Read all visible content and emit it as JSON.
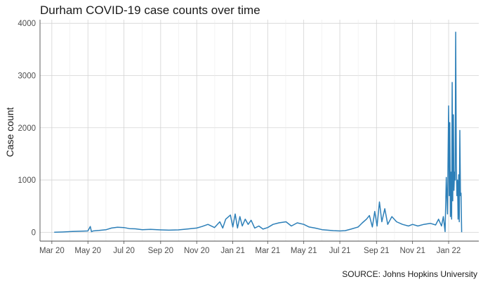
{
  "chart_data": {
    "type": "line",
    "title": "Durham COVID-19 case counts over time",
    "ylabel": "Case count",
    "xlabel": "",
    "source": "SOURCE: Johns Hopkins University",
    "ylim": [
      -170,
      4070
    ],
    "y_ticks": [
      0,
      1000,
      2000,
      3000,
      4000
    ],
    "x_tick_labels": [
      "Mar 20",
      "May 20",
      "Jul 20",
      "Sep 20",
      "Nov 20",
      "Jan 21",
      "Mar 21",
      "May 21",
      "Jul 21",
      "Sep 21",
      "Nov 21",
      "Jan 22"
    ],
    "x_tick_dates": [
      "2020-03-01",
      "2020-05-01",
      "2020-07-01",
      "2020-09-01",
      "2020-11-01",
      "2021-01-01",
      "2021-03-01",
      "2021-05-01",
      "2021-07-01",
      "2021-09-01",
      "2021-11-01",
      "2022-01-01"
    ],
    "xlim": [
      "2020-02-10",
      "2022-02-21"
    ],
    "grid": true,
    "series": [
      {
        "color": "#2c7fb8",
        "x": [
          "2020-03-05",
          "2020-03-20",
          "2020-04-05",
          "2020-04-20",
          "2020-05-01",
          "2020-05-05",
          "2020-05-07",
          "2020-05-10",
          "2020-05-20",
          "2020-06-01",
          "2020-06-10",
          "2020-06-20",
          "2020-07-01",
          "2020-07-10",
          "2020-07-20",
          "2020-08-01",
          "2020-08-15",
          "2020-09-01",
          "2020-09-15",
          "2020-10-01",
          "2020-10-15",
          "2020-11-01",
          "2020-11-10",
          "2020-11-20",
          "2020-12-01",
          "2020-12-10",
          "2020-12-15",
          "2020-12-20",
          "2020-12-28",
          "2021-01-01",
          "2021-01-05",
          "2021-01-09",
          "2021-01-13",
          "2021-01-17",
          "2021-01-22",
          "2021-01-27",
          "2021-02-01",
          "2021-02-07",
          "2021-02-14",
          "2021-02-21",
          "2021-03-01",
          "2021-03-10",
          "2021-03-20",
          "2021-04-01",
          "2021-04-10",
          "2021-04-20",
          "2021-05-01",
          "2021-05-10",
          "2021-05-20",
          "2021-06-01",
          "2021-06-10",
          "2021-06-20",
          "2021-07-01",
          "2021-07-10",
          "2021-07-20",
          "2021-08-01",
          "2021-08-08",
          "2021-08-15",
          "2021-08-20",
          "2021-08-25",
          "2021-08-29",
          "2021-09-02",
          "2021-09-06",
          "2021-09-10",
          "2021-09-15",
          "2021-09-20",
          "2021-09-27",
          "2021-10-05",
          "2021-10-15",
          "2021-10-25",
          "2021-11-01",
          "2021-11-10",
          "2021-11-20",
          "2021-12-01",
          "2021-12-10",
          "2021-12-15",
          "2021-12-20",
          "2021-12-23",
          "2021-12-26",
          "2021-12-28",
          "2021-12-30",
          "2022-01-01",
          "2022-01-02",
          "2022-01-03",
          "2022-01-04",
          "2022-01-05",
          "2022-01-06",
          "2022-01-07",
          "2022-01-08",
          "2022-01-09",
          "2022-01-10",
          "2022-01-11",
          "2022-01-12",
          "2022-01-13",
          "2022-01-14",
          "2022-01-15",
          "2022-01-16",
          "2022-01-17",
          "2022-01-18",
          "2022-01-19",
          "2022-01-20",
          "2022-01-21",
          "2022-01-22",
          "2022-01-23"
        ],
        "y": [
          0,
          5,
          15,
          20,
          25,
          110,
          10,
          25,
          35,
          50,
          80,
          95,
          90,
          70,
          65,
          50,
          55,
          45,
          40,
          45,
          60,
          80,
          110,
          150,
          90,
          200,
          80,
          250,
          330,
          100,
          350,
          80,
          300,
          120,
          250,
          150,
          230,
          80,
          120,
          60,
          90,
          150,
          180,
          200,
          120,
          180,
          150,
          100,
          80,
          50,
          40,
          30,
          25,
          30,
          60,
          100,
          180,
          250,
          320,
          100,
          400,
          120,
          580,
          200,
          450,
          150,
          300,
          200,
          150,
          120,
          150,
          120,
          150,
          170,
          140,
          250,
          120,
          300,
          10,
          1050,
          350,
          2420,
          700,
          2100,
          300,
          1150,
          250,
          2870,
          600,
          2250,
          800,
          1150,
          1000,
          3830,
          1300,
          700,
          1000,
          250,
          1100,
          200,
          1950,
          700,
          750,
          0
        ]
      }
    ]
  }
}
